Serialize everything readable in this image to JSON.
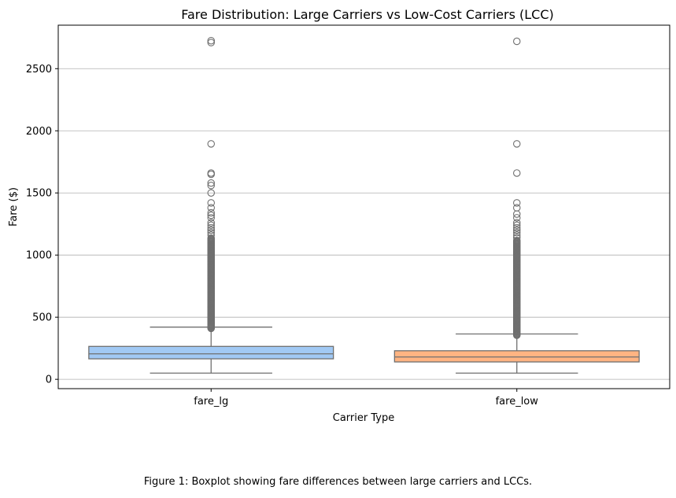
{
  "chart_data": {
    "type": "box",
    "title": "Fare Distribution: Large Carriers vs Low-Cost Carriers (LCC)",
    "xlabel": "Carrier Type",
    "ylabel": "Fare ($)",
    "categories": [
      "fare_lg",
      "fare_low"
    ],
    "ylim": [
      -75,
      2850
    ],
    "yticks": [
      0,
      500,
      1000,
      1500,
      2000,
      2500
    ],
    "grid": "horizontal",
    "legend": "none",
    "colors": {
      "fare_lg": "#a1c9f4",
      "fare_low": "#ffb482",
      "outline": "#6f6f6f",
      "grid": "#b0b0b0"
    },
    "boxes": [
      {
        "category": "fare_lg",
        "whisker_low": 50,
        "q1": 165,
        "median": 205,
        "q3": 265,
        "whisker_high": 420,
        "outliers_dense_range": [
          410,
          1140
        ],
        "outliers": [
          1160,
          1180,
          1200,
          1220,
          1240,
          1260,
          1300,
          1320,
          1340,
          1380,
          1420,
          1500,
          1560,
          1580,
          1650,
          1660,
          1895,
          2710,
          2725
        ]
      },
      {
        "category": "fare_low",
        "whisker_low": 50,
        "q1": 140,
        "median": 180,
        "q3": 230,
        "whisker_high": 365,
        "outliers_dense_range": [
          355,
          1120
        ],
        "outliers": [
          1140,
          1160,
          1180,
          1200,
          1220,
          1240,
          1260,
          1300,
          1330,
          1380,
          1420,
          1660,
          1895,
          2720
        ]
      }
    ]
  },
  "caption": "Figure 1: Boxplot showing fare differences between large carriers and LCCs."
}
